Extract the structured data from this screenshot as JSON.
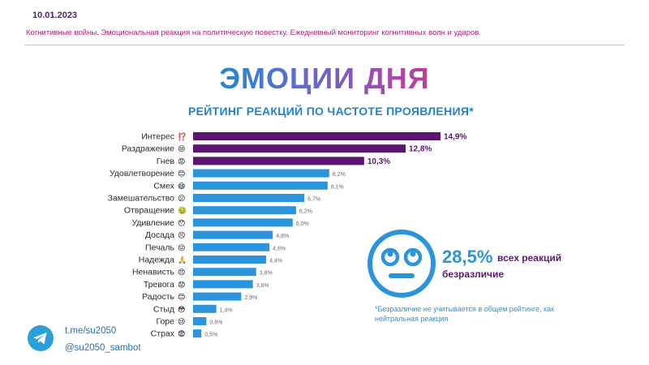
{
  "header": {
    "date": "10.01.2023",
    "subtitle": "Когнитивные войны. Эмоциональная реакция на политическую повестку. Ежедневный мониторинг когнитивных волн и ударов."
  },
  "hero_title": "ЭМОЦИИ ДНЯ",
  "colors": {
    "top": "#5e1470",
    "rest": "#2a95dc",
    "accent": "#b0207a"
  },
  "chart_data": {
    "type": "bar",
    "orientation": "horizontal",
    "title": "РЕЙТИНГ РЕАКЦИЙ ПО ЧАСТОТЕ ПРОЯВЛЕНИЯ*",
    "categories": [
      "Интерес",
      "Раздражение",
      "Гнев",
      "Удовлетворение",
      "Смех",
      "Замешательство",
      "Отвращение",
      "Удивление",
      "Досада",
      "Печаль",
      "Надежда",
      "Ненависть",
      "Тревога",
      "Радость",
      "Стыд",
      "Горе",
      "Страх"
    ],
    "emojis": [
      "⁉️",
      "😒",
      "😡",
      "😊",
      "😄",
      "😕",
      "🤢",
      "😯",
      "😣",
      "😔",
      "🙏",
      "😠",
      "😟",
      "😊",
      "😳",
      "😢",
      "😨"
    ],
    "values": [
      14.9,
      12.8,
      10.3,
      8.2,
      8.1,
      6.7,
      6.2,
      6.0,
      4.8,
      4.6,
      4.4,
      3.8,
      3.6,
      2.9,
      1.4,
      0.8,
      0.5
    ],
    "labels": [
      "14,9%",
      "12,8%",
      "10,3%",
      "8,2%",
      "8,1%",
      "6,7%",
      "6,2%",
      "6,0%",
      "4,8%",
      "4,6%",
      "4,4%",
      "3,8%",
      "3,6%",
      "2,9%",
      "1,4%",
      "0,8%",
      "0,5%"
    ],
    "highlight_top": 3,
    "xlim": [
      0,
      15
    ]
  },
  "indifference": {
    "percent": "28,5%",
    "suffix": "всех реакций",
    "label": "безразличие",
    "note": "*Безразличие не учитывается в общем рейтинге, как нейтральная реакция"
  },
  "contacts": {
    "channel": "t.me/su2050",
    "bot": "@su2050_sambot"
  }
}
